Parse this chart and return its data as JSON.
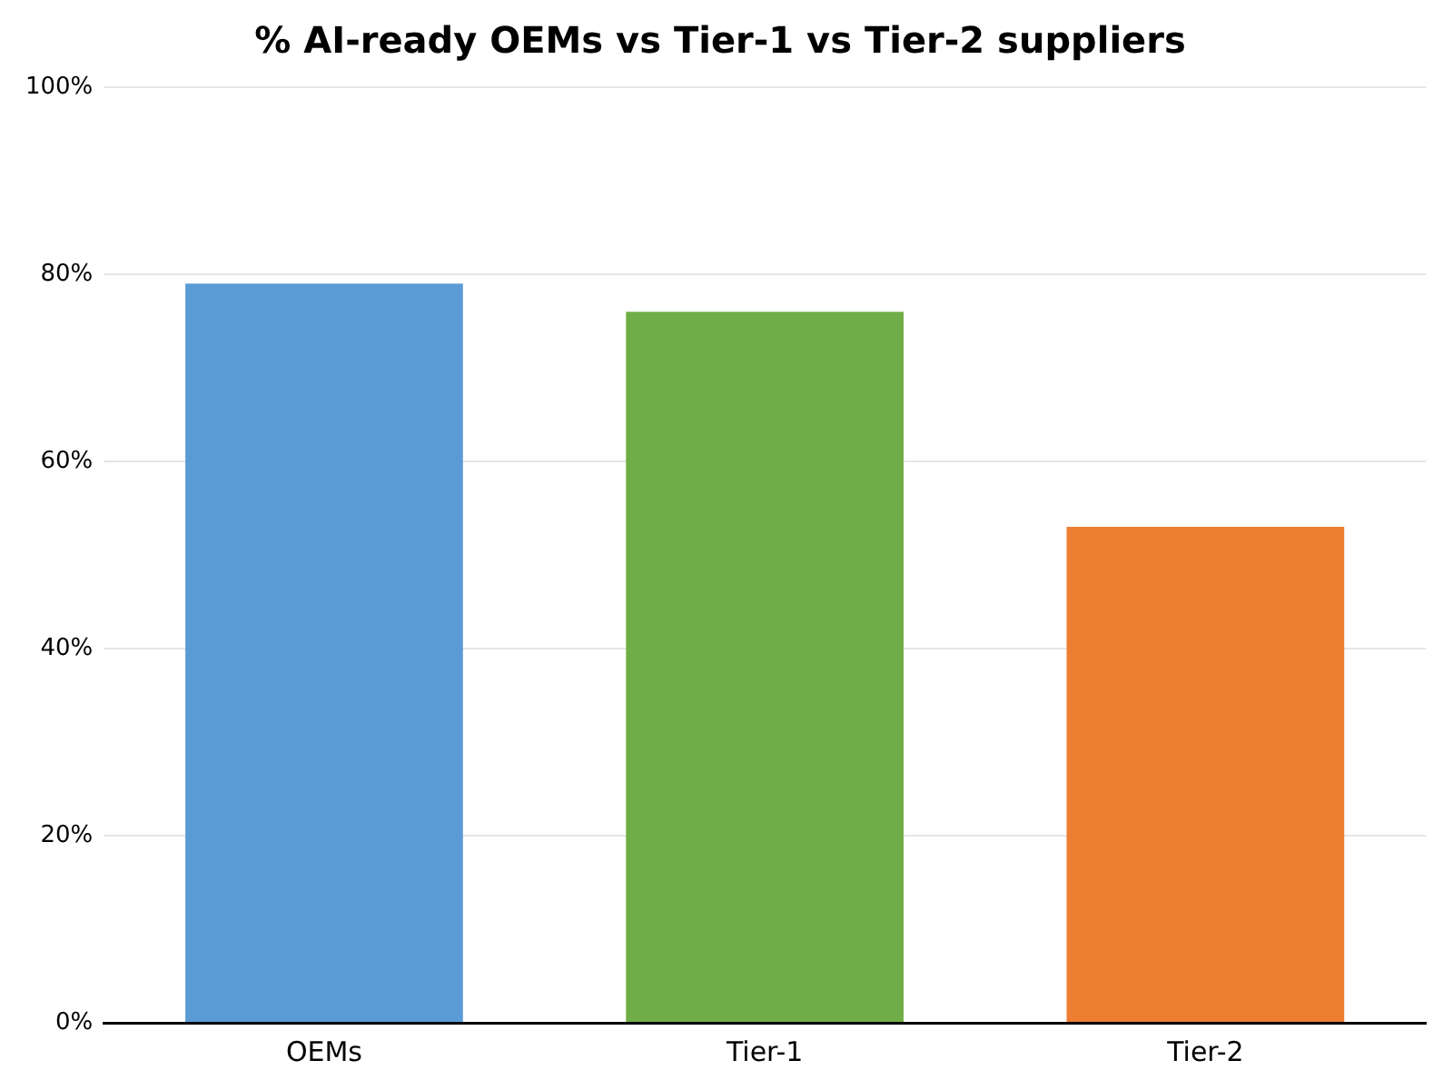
{
  "chart_data": {
    "type": "bar",
    "title": "% AI-ready OEMs vs Tier-1 vs Tier-2 suppliers",
    "categories": [
      "OEMs",
      "Tier-1",
      "Tier-2"
    ],
    "values": [
      79,
      76,
      53
    ],
    "colors": [
      "#5b9bd5",
      "#70ad47",
      "#ed7d31"
    ],
    "ylim": [
      0,
      100
    ],
    "yticks": [
      {
        "value": 0,
        "label": "0%"
      },
      {
        "value": 20,
        "label": "20%"
      },
      {
        "value": 40,
        "label": "40%"
      },
      {
        "value": 60,
        "label": "60%"
      },
      {
        "value": 80,
        "label": "80%"
      },
      {
        "value": 100,
        "label": "100%"
      }
    ],
    "grid": "y",
    "legend": false
  }
}
